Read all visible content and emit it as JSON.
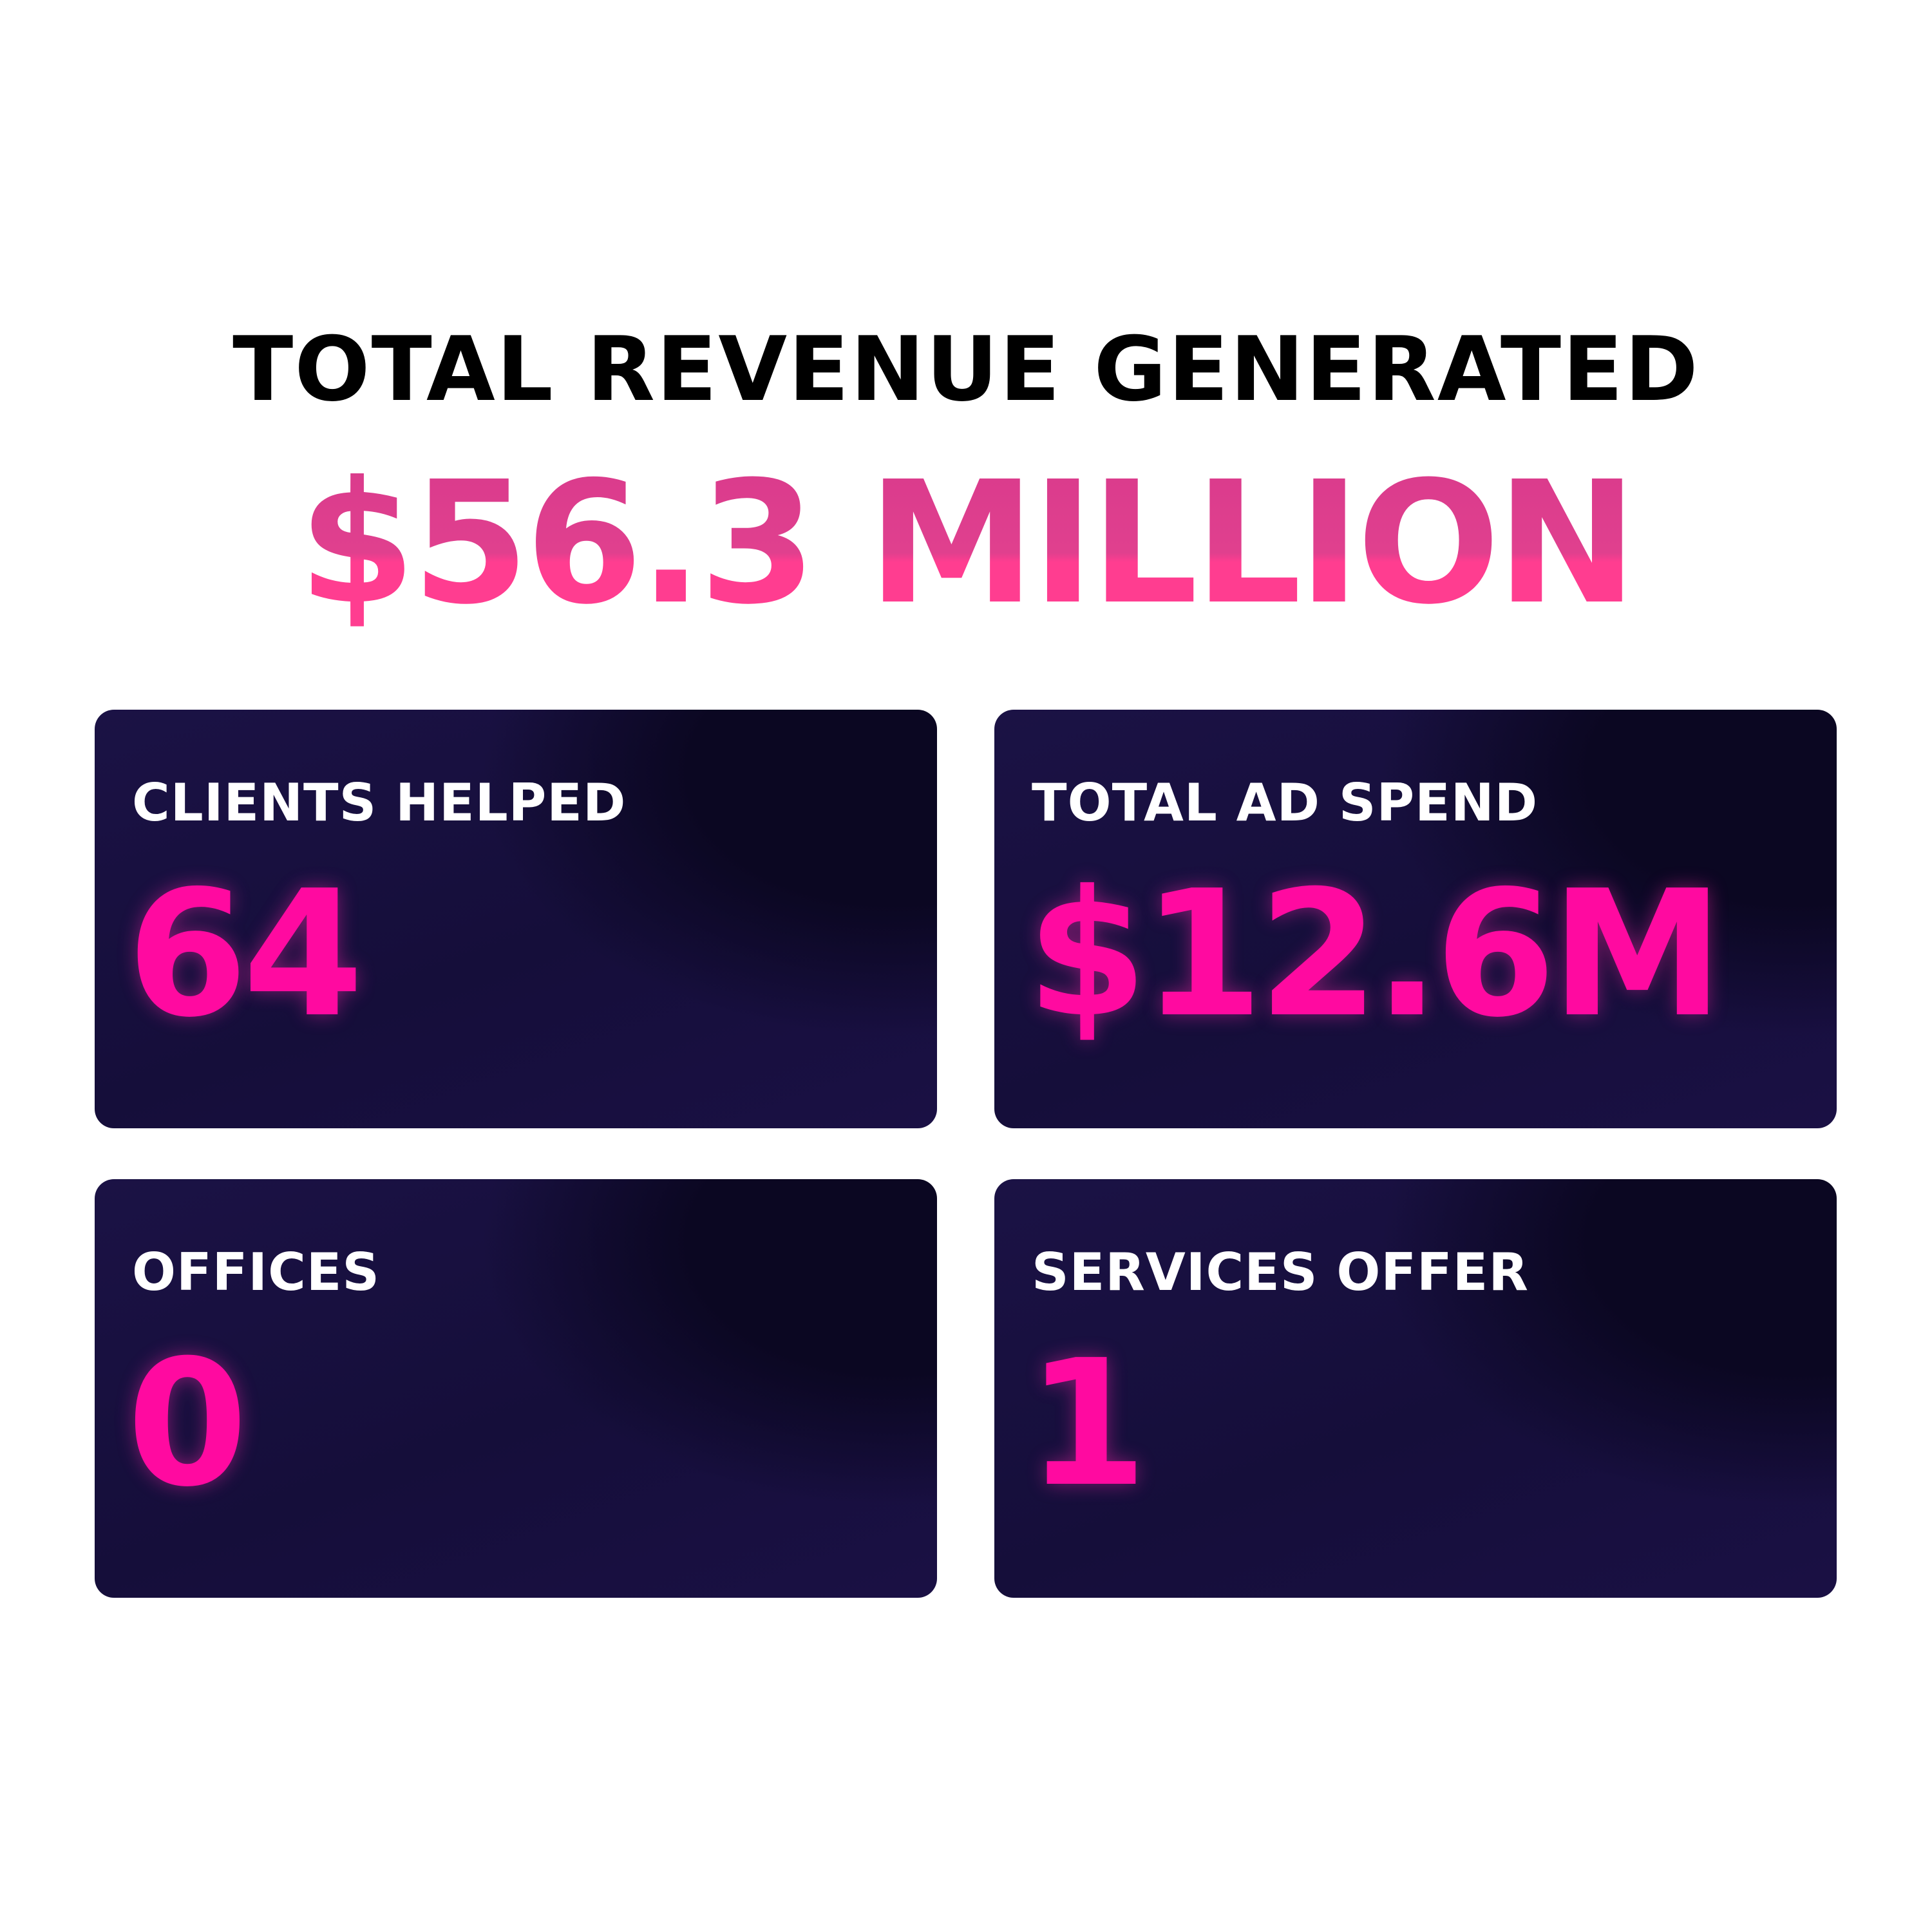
{
  "header": {
    "title": "TOTAL REVENUE GENERATED",
    "value": "$56.3 MILLION"
  },
  "cards": [
    {
      "label": "CLIENTS HELPED",
      "value": "64"
    },
    {
      "label": "TOTAL AD SPEND",
      "value": "$12.6M"
    },
    {
      "label": "OFFICES",
      "value": "0"
    },
    {
      "label": "SERVICES OFFER",
      "value": "1"
    }
  ]
}
